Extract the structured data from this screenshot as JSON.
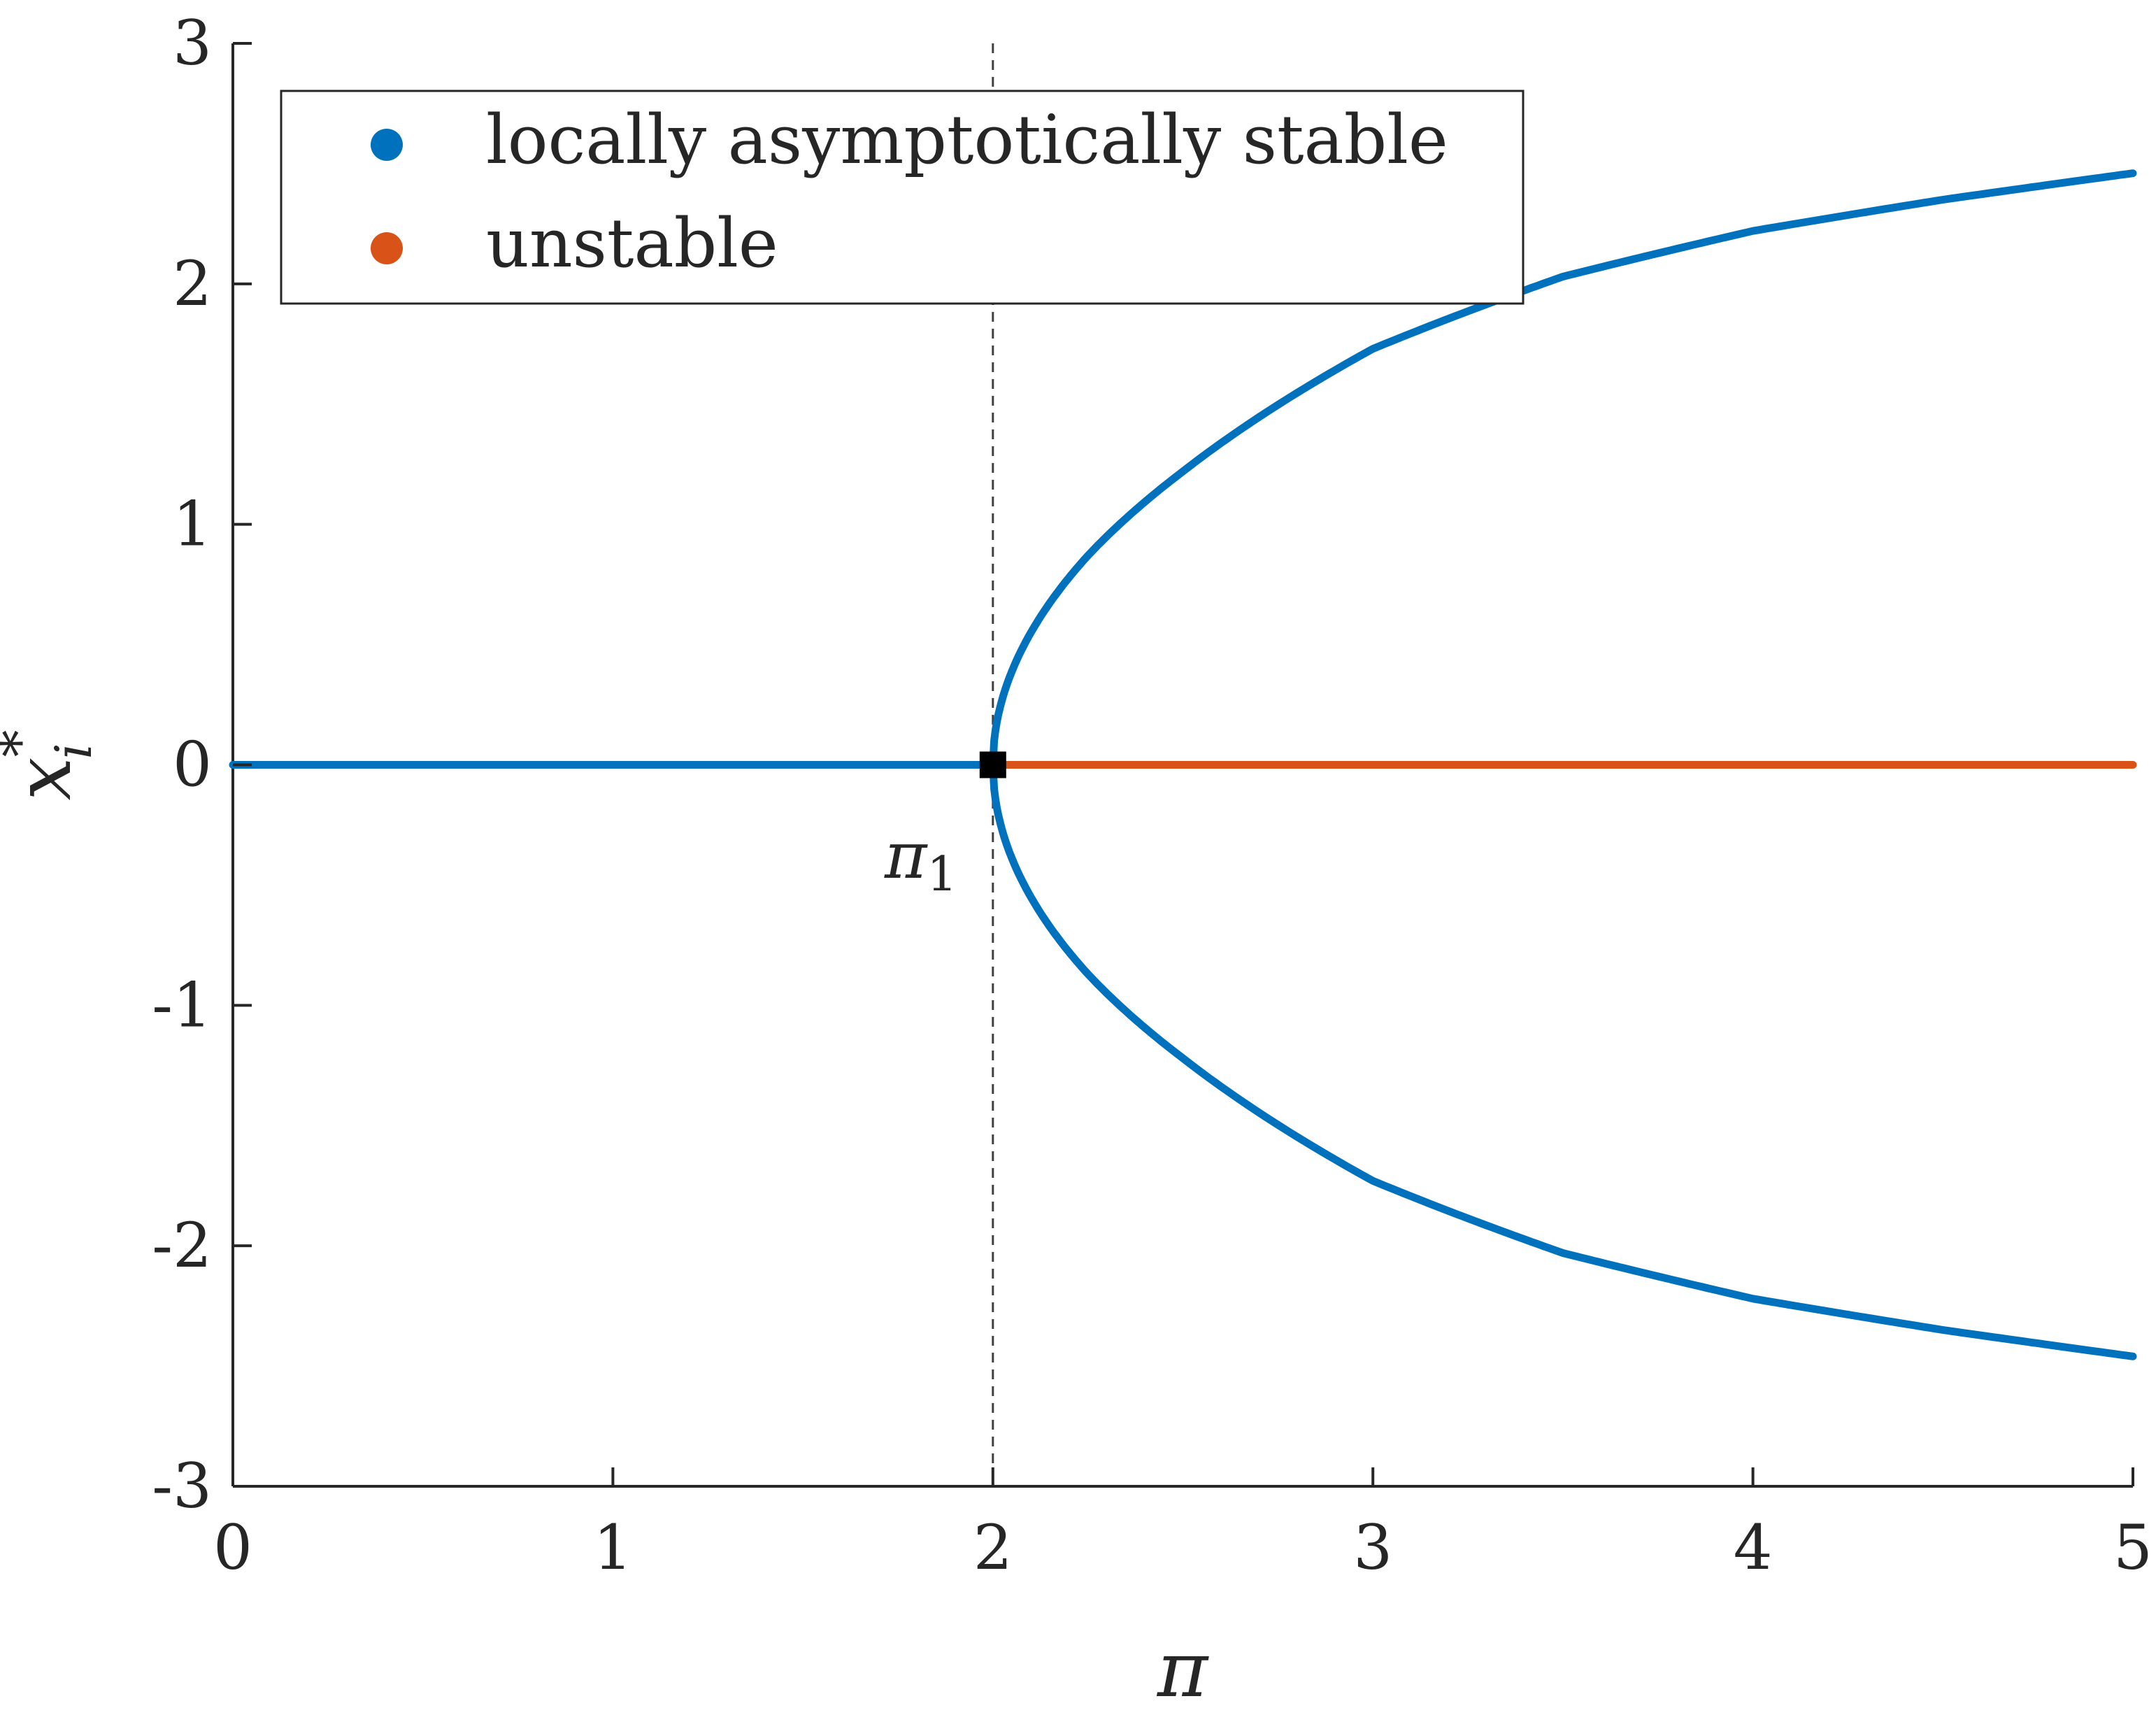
{
  "chart_data": {
    "type": "line",
    "xlabel": "π",
    "ylabel": "x",
    "ylabel_superscript": "*",
    "ylabel_subscript": "i",
    "xlim": [
      0,
      5
    ],
    "ylim": [
      -3,
      3
    ],
    "x_ticks": [
      0,
      1,
      2,
      3,
      4,
      5
    ],
    "x_tick_labels": [
      "0",
      "1",
      "2",
      "3",
      "4",
      "5"
    ],
    "y_ticks": [
      -3,
      -2,
      -1,
      0,
      1,
      2,
      3
    ],
    "y_tick_labels": [
      "-3",
      "-2",
      "-1",
      "0",
      "1",
      "2",
      "3"
    ],
    "grid": false,
    "legend_position": "top-left",
    "legend": [
      {
        "label": "locally asymptotically stable",
        "color": "#0072BD"
      },
      {
        "label": "unstable",
        "color": "#D95319"
      }
    ],
    "series": [
      {
        "name": "locally asymptotically stable",
        "color": "#0072BD",
        "segments": [
          {
            "part": "trivial branch",
            "x": [
              0,
              2
            ],
            "y": [
              0,
              0
            ]
          },
          {
            "part": "upper branch",
            "x": [
              2,
              2.1,
              2.25,
              2.5,
              3,
              3.5,
              4,
              4.5,
              5
            ],
            "y": [
              0,
              0.55,
              0.87,
              1.22,
              1.73,
              2.03,
              2.22,
              2.35,
              2.46
            ]
          },
          {
            "part": "lower branch",
            "x": [
              2,
              2.1,
              2.25,
              2.5,
              3,
              3.5,
              4,
              4.5,
              5
            ],
            "y": [
              0,
              -0.55,
              -0.87,
              -1.22,
              -1.73,
              -2.03,
              -2.22,
              -2.35,
              -2.46
            ]
          }
        ]
      },
      {
        "name": "unstable",
        "color": "#D95319",
        "segments": [
          {
            "part": "trivial branch",
            "x": [
              2,
              5
            ],
            "y": [
              0,
              0
            ]
          }
        ]
      }
    ],
    "reference_line": {
      "x": 2,
      "style": "dashed"
    },
    "bifurcation_point": {
      "x": 2,
      "y": 0,
      "label": "π",
      "label_subscript": "1"
    }
  }
}
